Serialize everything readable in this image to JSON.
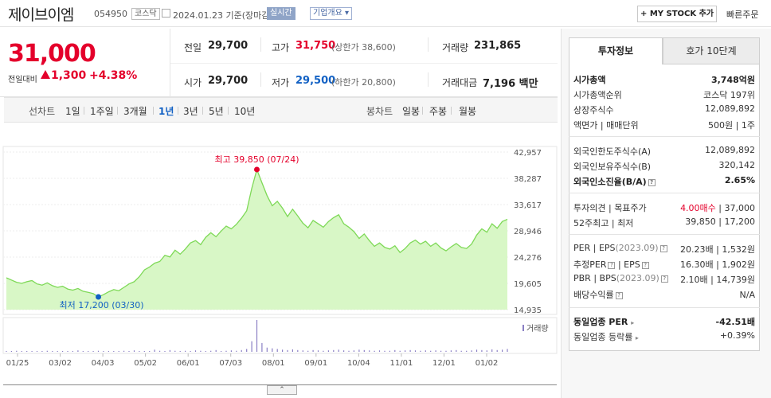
{
  "header": {
    "title": "제이브이엠",
    "code": "054950",
    "market": "코스닥",
    "date": "2024.01.23",
    "date_note": "기준(장마감)",
    "realtime": "실시간",
    "corp_info": "기업개요",
    "mystock": "+ MY STOCK 추가",
    "quick_order": "빠른주문"
  },
  "quote": {
    "price": "31,000",
    "change_label": "전일대비",
    "change": "1,300",
    "change_pct": "+4.38%",
    "prev_close_label": "전일",
    "prev_close": "29,700",
    "high_label": "고가",
    "high": "31,750",
    "upper_limit": "(상한가 38,600)",
    "volume_label": "거래량",
    "volume": "231,865",
    "open_label": "시가",
    "open": "29,700",
    "low_label": "저가",
    "low": "29,500",
    "lower_limit": "(하한가 20,800)",
    "amount_label": "거래대금",
    "amount": "7,196",
    "amount_unit": "백만"
  },
  "tabs": {
    "line_chart": "선차트",
    "ranges": [
      "1일",
      "1주일",
      "3개월",
      "1년",
      "3년",
      "5년",
      "10년"
    ],
    "selected": "1년",
    "candle_chart": "봉차트",
    "candles": [
      "일봉",
      "주봉",
      "월봉"
    ]
  },
  "chart_data": {
    "type": "area",
    "x_ticks": [
      "01/25",
      "03/02",
      "04/03",
      "05/02",
      "06/01",
      "07/03",
      "08/01",
      "09/01",
      "10/04",
      "11/01",
      "12/01",
      "01/02"
    ],
    "y_ticks": [
      "42,957",
      "38,287",
      "33,617",
      "28,946",
      "24,276",
      "19,605",
      "14,935"
    ],
    "ylim": [
      14935,
      42957
    ],
    "values": [
      20600,
      20200,
      19800,
      19600,
      19900,
      20100,
      19500,
      19300,
      19700,
      19200,
      18900,
      19100,
      18600,
      18400,
      18700,
      18200,
      18000,
      17800,
      17200,
      17600,
      18100,
      18500,
      18300,
      18900,
      19500,
      19900,
      20800,
      22000,
      22500,
      23200,
      23500,
      24600,
      24300,
      25500,
      24800,
      25700,
      26800,
      27200,
      26500,
      27800,
      28600,
      27900,
      28900,
      29800,
      29300,
      30100,
      31200,
      32500,
      36500,
      39850,
      37500,
      35200,
      33400,
      34200,
      33000,
      31500,
      32800,
      31600,
      30300,
      29500,
      30800,
      30200,
      29600,
      30600,
      31300,
      31800,
      30200,
      29600,
      28800,
      27600,
      28400,
      27200,
      26200,
      26800,
      26000,
      25700,
      26300,
      25100,
      25800,
      26800,
      27300,
      26600,
      27100,
      26200,
      26800,
      25900,
      25400,
      26100,
      26700,
      26000,
      25800,
      26600,
      28200,
      29300,
      28700,
      30200,
      29400,
      30600,
      31000
    ],
    "volume": [
      2,
      1,
      3,
      1,
      2,
      1,
      1,
      2,
      3,
      1,
      2,
      1,
      1,
      2,
      4,
      2,
      1,
      1,
      3,
      2,
      1,
      2,
      1,
      3,
      2,
      4,
      2,
      1,
      2,
      6,
      3,
      2,
      5,
      3,
      2,
      3,
      2,
      4,
      3,
      2,
      3,
      5,
      2,
      3,
      4,
      3,
      5,
      8,
      30,
      90,
      25,
      12,
      10,
      8,
      6,
      5,
      7,
      5,
      4,
      3,
      5,
      4,
      3,
      4,
      5,
      6,
      4,
      3,
      4,
      6,
      5,
      4,
      3,
      4,
      3,
      3,
      5,
      3,
      4,
      5,
      4,
      3,
      4,
      3,
      4,
      3,
      3,
      4,
      5,
      3,
      3,
      4,
      6,
      5,
      4,
      7,
      5,
      6,
      8
    ],
    "annotations": {
      "high_label": "최고 39,850 (07/24)",
      "low_label": "최저 17,200 (03/30)"
    },
    "volume_legend": "거래량",
    "accent": "#7ed957",
    "fill": "#d8f7c6"
  },
  "invest": {
    "tab_selected": "투자정보",
    "tab_other": "호가 10단계",
    "market_cap_label": "시가총액",
    "market_cap": "3,748억원",
    "market_cap_rank_label": "시가총액순위",
    "market_cap_rank": "코스닥 197위",
    "shares_label": "상장주식수",
    "shares": "12,089,892",
    "par_label": "액면가",
    "unit_label": "매매단위",
    "par": "500원",
    "unit": "1주",
    "foreign_limit_label": "외국인한도주식수(A)",
    "foreign_limit": "12,089,892",
    "foreign_hold_label": "외국인보유주식수(B)",
    "foreign_hold": "320,142",
    "foreign_ratio_label": "외국인소진율(B/A)",
    "foreign_ratio": "2.65%",
    "opinion_label": "투자의견",
    "target_label": "목표주가",
    "opinion": "4.00매수",
    "target": "37,000",
    "week52_label": "52주최고",
    "week52_low_label": "최저",
    "week52_high": "39,850",
    "week52_low": "17,200",
    "per_label": "PER",
    "eps_label": "EPS",
    "per_period": "(2023.09)",
    "per": "20.23배",
    "eps": "1,532원",
    "est_per_label": "추정PER",
    "est_eps_label": "EPS",
    "est_per": "16.30배",
    "est_eps": "1,902원",
    "pbr_label": "PBR",
    "bps_label": "BPS",
    "pbr_period": "(2023.09)",
    "pbr": "2.10배",
    "bps": "14,739원",
    "dividend_label": "배당수익률",
    "dividend": "N/A",
    "sector_per_label": "동일업종 PER",
    "sector_per": "-42.51배",
    "sector_rate_label": "동일업종 등락률",
    "sector_rate": "+0.39%"
  }
}
